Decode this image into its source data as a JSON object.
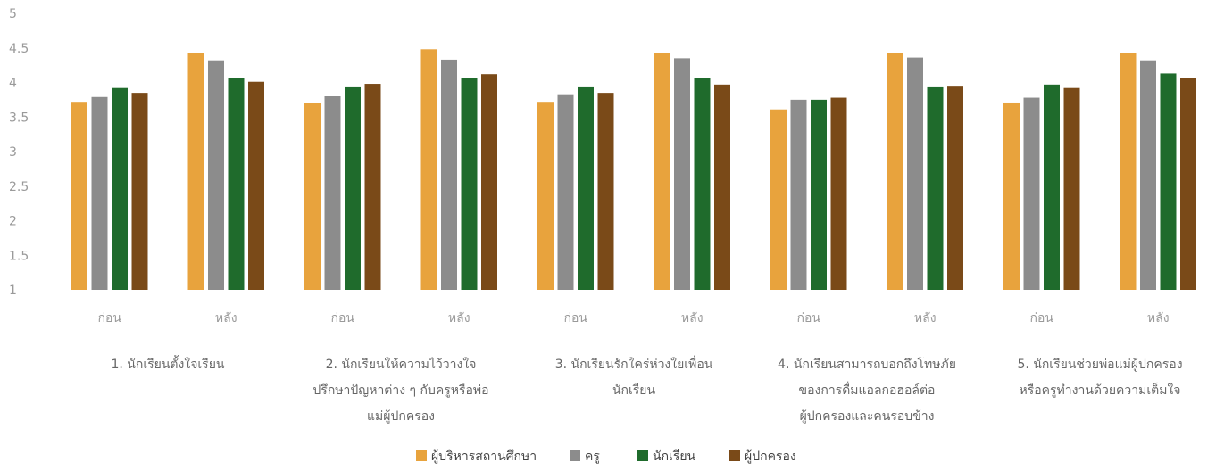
{
  "chart_data": {
    "type": "bar",
    "title": "",
    "xlabel": "",
    "ylabel": "",
    "ylim": [
      1,
      5
    ],
    "yticks": [
      "5",
      "4.5",
      "4",
      "3.5",
      "3",
      "2.5",
      "2",
      "1.5",
      "1"
    ],
    "grid": false,
    "legend_position": "bottom",
    "categories": [
      "ก่อน",
      "หลัง",
      "ก่อน",
      "หลัง",
      "ก่อน",
      "หลัง",
      "ก่อน",
      "หลัง",
      "ก่อน",
      "หลัง"
    ],
    "groups": [
      [
        "1. นักเรียนตั้งใจเรียน"
      ],
      [
        "2. นักเรียนให้ความไว้วางใจ",
        "ปรึกษาปัญหาต่าง ๆ กับครูหรือพ่อ",
        "แม่ผู้ปกครอง"
      ],
      [
        "3. นักเรียนรักใคร่ห่วงใยเพื่อน",
        "นักเรียน"
      ],
      [
        "4. นักเรียนสามารถบอกถึงโทษภัย",
        "ของการดื่มแอลกอฮอล์ต่อ",
        "ผู้ปกครองและคนรอบข้าง"
      ],
      [
        "5. นักเรียนช่วยพ่อแม่ผู้ปกครอง",
        "หรือครูทำงานด้วยความเต็มใจ"
      ]
    ],
    "series": [
      {
        "name": "ผู้บริหารสถานศึกษา",
        "color": "#e8a33d",
        "values": [
          3.72,
          4.43,
          3.7,
          4.48,
          3.72,
          4.43,
          3.61,
          4.42,
          3.71,
          4.42
        ]
      },
      {
        "name": "ครู",
        "color": "#8c8c8c",
        "values": [
          3.79,
          4.32,
          3.8,
          4.33,
          3.83,
          4.35,
          3.75,
          4.36,
          3.78,
          4.32
        ]
      },
      {
        "name": "นักเรียน",
        "color": "#1f6b2c",
        "values": [
          3.92,
          4.07,
          3.93,
          4.07,
          3.93,
          4.07,
          3.75,
          3.93,
          3.97,
          4.13
        ]
      },
      {
        "name": "ผู้ปกครอง",
        "color": "#7a4a18",
        "values": [
          3.85,
          4.01,
          3.98,
          4.12,
          3.85,
          3.97,
          3.78,
          3.94,
          3.92,
          4.07
        ]
      }
    ]
  }
}
